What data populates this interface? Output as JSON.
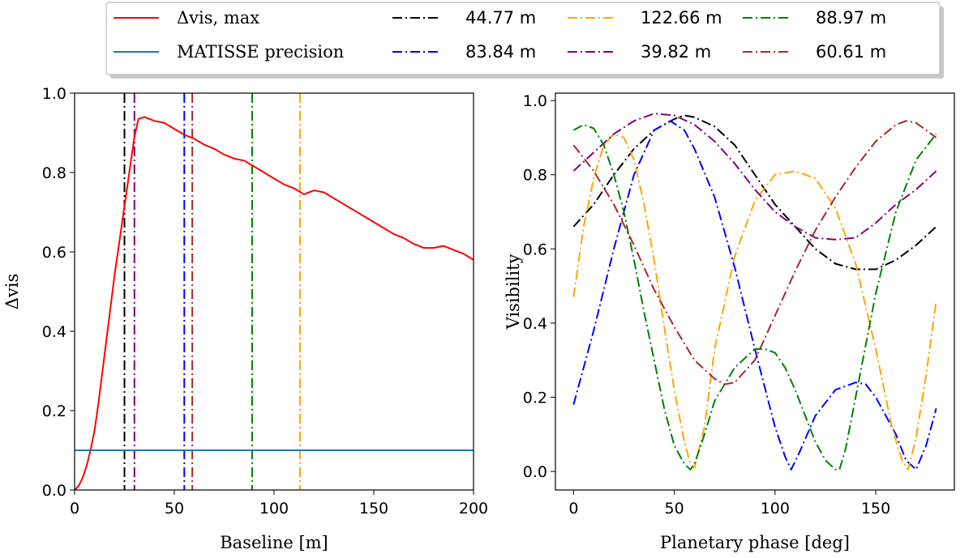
{
  "legend": {
    "entries": [
      {
        "label": "Δvis, max",
        "color": "#ff0000",
        "dash": "solid"
      },
      {
        "label": "MATISSE precision",
        "color": "#1f77b4",
        "dash": "solid"
      },
      {
        "label": "44.77 m",
        "color": "#000000",
        "dash": "dashdot"
      },
      {
        "label": "83.84 m",
        "color": "#0000ff",
        "dash": "dashdot"
      },
      {
        "label": "122.66 m",
        "color": "#ffa500",
        "dash": "dashdot"
      },
      {
        "label": "39.82 m",
        "color": "#800080",
        "dash": "dashdot"
      },
      {
        "label": "88.97 m",
        "color": "#008000",
        "dash": "dashdot"
      },
      {
        "label": "60.61 m",
        "color": "#a52a2a",
        "dash": "dashdot"
      }
    ]
  },
  "chart_data": [
    {
      "type": "line",
      "xlabel": "Baseline [m]",
      "ylabel": "Δvis",
      "xlim": [
        0,
        200
      ],
      "ylim": [
        0,
        1
      ],
      "xticks": [
        0,
        50,
        100,
        150,
        200
      ],
      "yticks": [
        0.0,
        0.2,
        0.4,
        0.6,
        0.8,
        1.0
      ],
      "grid": false,
      "series": [
        {
          "name": "Δvis, max",
          "color": "#ff0000",
          "x": [
            0,
            2,
            4,
            6,
            8,
            10,
            12,
            14,
            16,
            18,
            20,
            22,
            24,
            26,
            28,
            30,
            32,
            35,
            40,
            45,
            50,
            55,
            60,
            65,
            70,
            75,
            80,
            85,
            90,
            95,
            100,
            105,
            110,
            115,
            120,
            125,
            130,
            135,
            140,
            145,
            150,
            155,
            160,
            165,
            170,
            175,
            180,
            185,
            190,
            195,
            200
          ],
          "y": [
            0.0,
            0.01,
            0.03,
            0.06,
            0.1,
            0.15,
            0.22,
            0.3,
            0.38,
            0.46,
            0.54,
            0.61,
            0.68,
            0.75,
            0.82,
            0.89,
            0.935,
            0.94,
            0.93,
            0.925,
            0.91,
            0.895,
            0.885,
            0.87,
            0.86,
            0.845,
            0.835,
            0.83,
            0.815,
            0.8,
            0.785,
            0.77,
            0.76,
            0.745,
            0.755,
            0.75,
            0.735,
            0.72,
            0.705,
            0.69,
            0.675,
            0.66,
            0.645,
            0.635,
            0.62,
            0.61,
            0.61,
            0.615,
            0.605,
            0.595,
            0.58
          ]
        },
        {
          "name": "MATISSE precision",
          "color": "#1f77b4",
          "x": [
            0,
            200
          ],
          "y": [
            0.1,
            0.1
          ]
        }
      ],
      "vlines": [
        {
          "x": 25,
          "color": "#000000"
        },
        {
          "x": 30,
          "color": "#800080"
        },
        {
          "x": 55,
          "color": "#0000ff"
        },
        {
          "x": 59,
          "color": "#a52a2a"
        },
        {
          "x": 89,
          "color": "#008000"
        },
        {
          "x": 113,
          "color": "#ffa500"
        }
      ]
    },
    {
      "type": "line",
      "xlabel": "Planetary phase [deg]",
      "ylabel": "Visibility",
      "xlim": [
        -9,
        189
      ],
      "ylim": [
        -0.05,
        1.02
      ],
      "xticks": [
        0,
        50,
        100,
        150
      ],
      "yticks": [
        0.0,
        0.2,
        0.4,
        0.6,
        0.8,
        1.0
      ],
      "grid": false,
      "series": [
        {
          "name": "44.77 m",
          "color": "#000000",
          "x": [
            0,
            10,
            20,
            30,
            40,
            50,
            55,
            60,
            70,
            80,
            90,
            100,
            110,
            120,
            130,
            140,
            150,
            160,
            170,
            180
          ],
          "y": [
            0.66,
            0.72,
            0.8,
            0.87,
            0.92,
            0.95,
            0.96,
            0.955,
            0.93,
            0.88,
            0.8,
            0.72,
            0.66,
            0.6,
            0.56,
            0.545,
            0.545,
            0.57,
            0.61,
            0.66
          ]
        },
        {
          "name": "83.84 m",
          "color": "#0000ff",
          "x": [
            0,
            10,
            20,
            30,
            40,
            48,
            55,
            60,
            70,
            80,
            90,
            100,
            105,
            108,
            112,
            120,
            130,
            140,
            145,
            150,
            160,
            165,
            170,
            175,
            180
          ],
          "y": [
            0.18,
            0.38,
            0.6,
            0.8,
            0.92,
            0.945,
            0.92,
            0.87,
            0.74,
            0.55,
            0.33,
            0.12,
            0.04,
            0.005,
            0.05,
            0.15,
            0.22,
            0.24,
            0.235,
            0.2,
            0.1,
            0.03,
            0.005,
            0.07,
            0.17
          ]
        },
        {
          "name": "122.66 m",
          "color": "#ffa500",
          "x": [
            0,
            5,
            10,
            15,
            20,
            25,
            30,
            35,
            40,
            45,
            50,
            55,
            58,
            60,
            65,
            70,
            80,
            90,
            100,
            110,
            120,
            130,
            140,
            150,
            158,
            163,
            166,
            170,
            175,
            180
          ],
          "y": [
            0.47,
            0.66,
            0.79,
            0.88,
            0.91,
            0.9,
            0.84,
            0.72,
            0.57,
            0.39,
            0.22,
            0.08,
            0.02,
            0.01,
            0.12,
            0.33,
            0.58,
            0.73,
            0.8,
            0.81,
            0.79,
            0.71,
            0.56,
            0.33,
            0.12,
            0.03,
            0.005,
            0.09,
            0.26,
            0.46
          ]
        },
        {
          "name": "39.82 m",
          "color": "#800080",
          "x": [
            0,
            10,
            20,
            30,
            40,
            50,
            60,
            70,
            80,
            90,
            100,
            110,
            120,
            130,
            140,
            150,
            160,
            170,
            180
          ],
          "y": [
            0.81,
            0.86,
            0.91,
            0.945,
            0.965,
            0.96,
            0.935,
            0.89,
            0.83,
            0.76,
            0.7,
            0.66,
            0.63,
            0.625,
            0.63,
            0.67,
            0.72,
            0.76,
            0.81
          ]
        },
        {
          "name": "88.97 m",
          "color": "#008000",
          "x": [
            0,
            5,
            10,
            15,
            20,
            25,
            30,
            35,
            40,
            45,
            50,
            55,
            58,
            60,
            65,
            70,
            80,
            90,
            95,
            100,
            105,
            110,
            115,
            120,
            125,
            130,
            132,
            135,
            140,
            150,
            160,
            170,
            180
          ],
          "y": [
            0.92,
            0.935,
            0.925,
            0.88,
            0.8,
            0.7,
            0.57,
            0.43,
            0.3,
            0.17,
            0.07,
            0.02,
            0.005,
            0.02,
            0.1,
            0.19,
            0.28,
            0.33,
            0.33,
            0.32,
            0.28,
            0.22,
            0.15,
            0.08,
            0.03,
            0.005,
            0.005,
            0.06,
            0.2,
            0.48,
            0.7,
            0.84,
            0.91
          ]
        },
        {
          "name": "60.61 m",
          "color": "#a52a2a",
          "x": [
            0,
            10,
            20,
            30,
            40,
            50,
            60,
            70,
            75,
            80,
            90,
            100,
            110,
            120,
            130,
            140,
            150,
            160,
            165,
            170,
            180
          ],
          "y": [
            0.88,
            0.81,
            0.72,
            0.61,
            0.49,
            0.39,
            0.3,
            0.25,
            0.235,
            0.24,
            0.3,
            0.42,
            0.54,
            0.65,
            0.74,
            0.82,
            0.89,
            0.935,
            0.945,
            0.94,
            0.9
          ]
        }
      ]
    }
  ]
}
